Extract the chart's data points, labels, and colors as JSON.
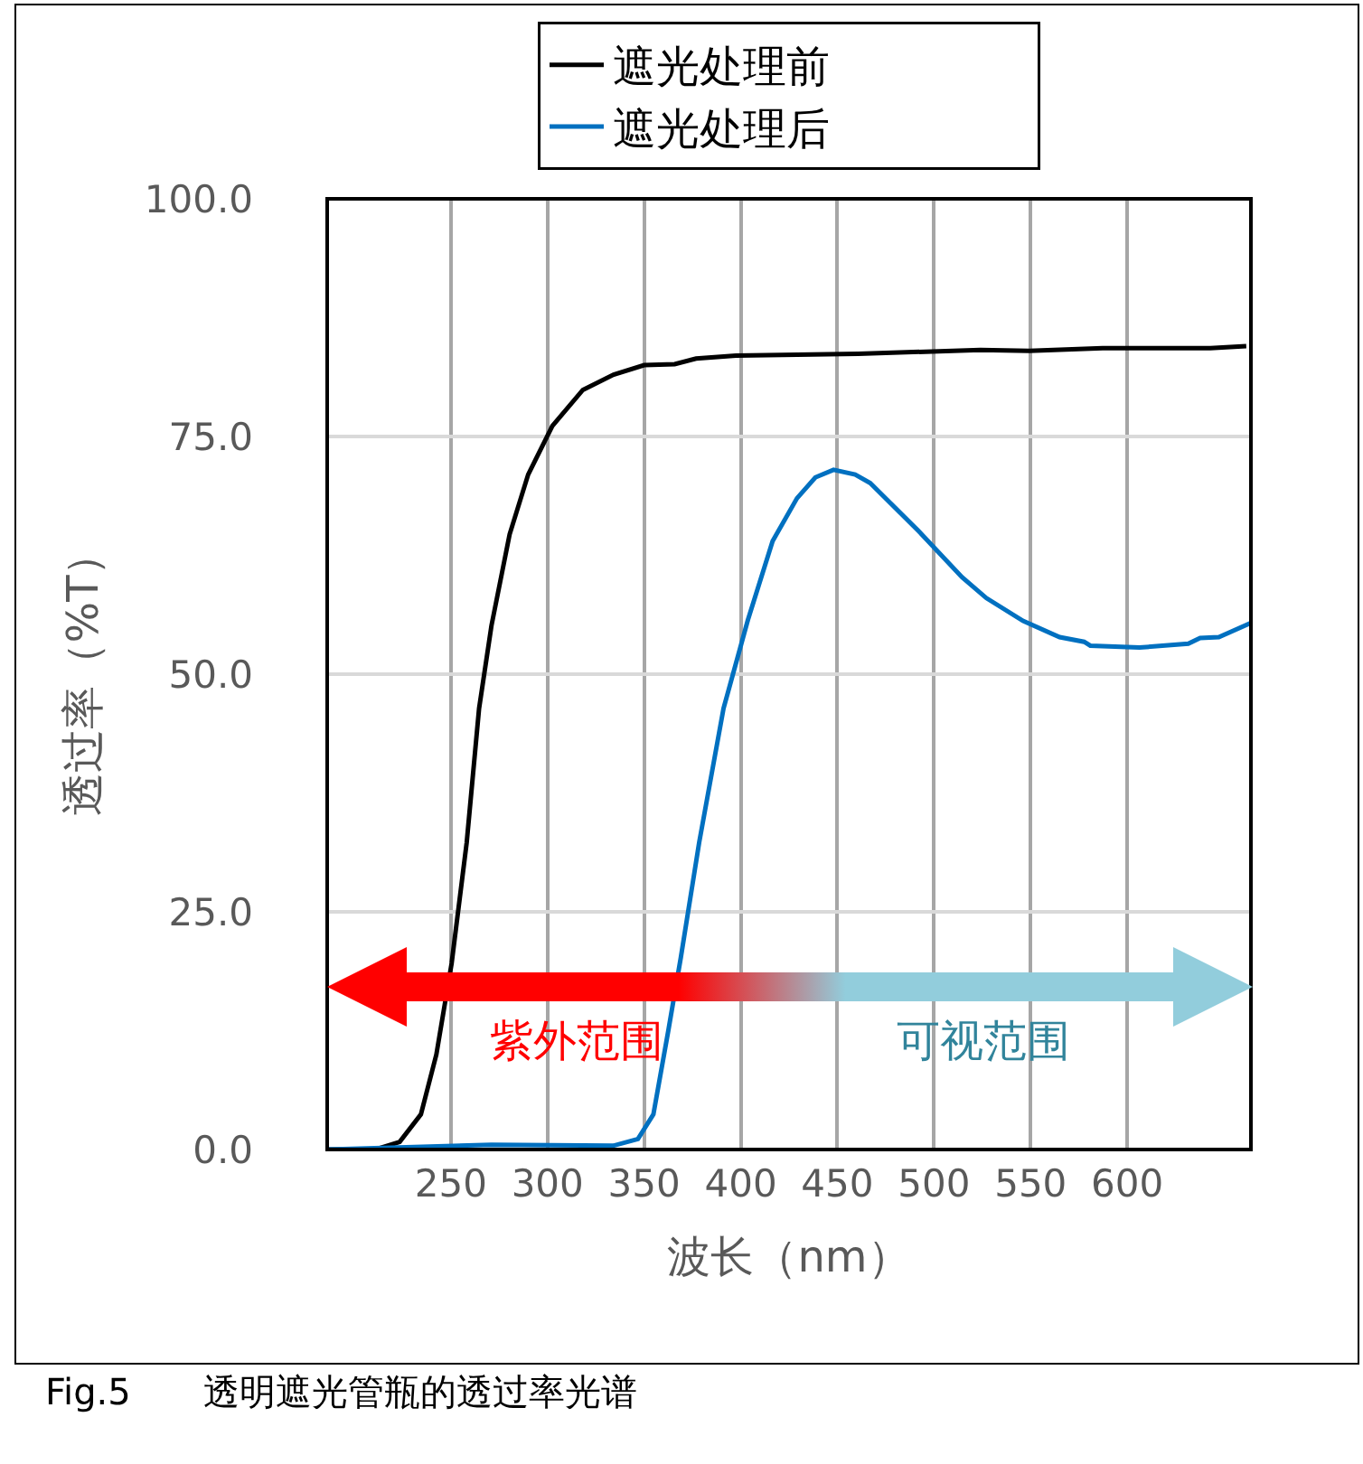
{
  "chart_data": {
    "type": "line",
    "xlabel": "波长（nm）",
    "ylabel": "透过率（%T）",
    "xlim": [
      186,
      664
    ],
    "xticks": [
      250,
      300,
      350,
      400,
      450,
      500,
      550,
      600
    ],
    "ylim": [
      0,
      100
    ],
    "yticks": [
      {
        "value": 0,
        "label": "0.0"
      },
      {
        "value": 25,
        "label": "25.0"
      },
      {
        "value": 50,
        "label": "50.0"
      },
      {
        "value": 75,
        "label": "75.0"
      },
      {
        "value": 100,
        "label": "100.0"
      }
    ],
    "grid": true,
    "legend": "top",
    "marker": "none",
    "line_style": "solid",
    "series": [
      {
        "name": "遮光处理前",
        "color": "#000000",
        "x": [
          186,
          211,
          223.5,
          234.5,
          242.5,
          250.4,
          258.2,
          264.6,
          271,
          280.4,
          290,
          302.5,
          318.3,
          334.2,
          350,
          365.8,
          376.9,
          397.5,
          460.7,
          524,
          549.3,
          587.3,
          643,
          661.6
        ],
        "values": [
          0,
          0,
          0.8,
          3.7,
          10,
          19.6,
          32.3,
          46.4,
          55.1,
          64.7,
          71,
          76.1,
          79.9,
          81.5,
          82.5,
          82.6,
          83.2,
          83.5,
          83.7,
          84.1,
          84,
          84.3,
          84.3,
          84.5
        ]
      },
      {
        "name": "遮光处理后",
        "color": "#0070c0",
        "x": [
          186,
          271,
          334,
          346.8,
          354.8,
          362.6,
          369,
          378.5,
          391.1,
          403.7,
          416.5,
          429.1,
          438.6,
          448,
          459.2,
          467,
          492.3,
          514.5,
          527.1,
          546.1,
          565,
          577.7,
          580.9,
          606.3,
          631.6,
          637.7,
          647.4,
          664
        ],
        "values": [
          0,
          0.5,
          0.4,
          1.1,
          3.7,
          12.6,
          20.2,
          32.3,
          46.4,
          55.7,
          64,
          68.5,
          70.7,
          71.5,
          71,
          70.1,
          65,
          60.2,
          58,
          55.6,
          53.9,
          53.4,
          53,
          52.8,
          53.2,
          53.8,
          53.9,
          55.4
        ]
      }
    ],
    "annotations": [
      "紫外范围",
      "可视范围",
      "Fig.5　　透明遮光管瓶的透过率光谱"
    ]
  }
}
